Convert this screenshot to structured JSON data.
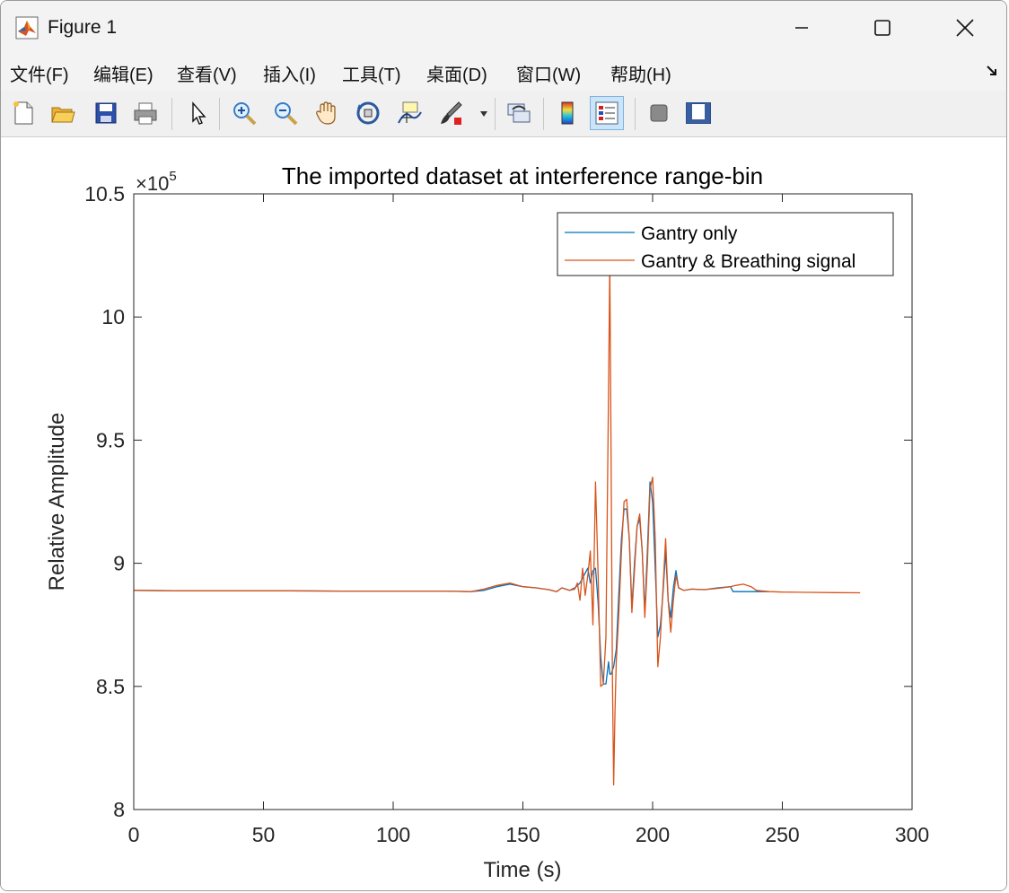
{
  "window": {
    "title": "Figure 1",
    "controls": {
      "minimize": "—",
      "maximize": "☐",
      "close": "✕"
    }
  },
  "menu": {
    "items": [
      "文件(F)",
      "编辑(E)",
      "查看(V)",
      "插入(I)",
      "工具(T)",
      "桌面(D)",
      "窗口(W)",
      "帮助(H)"
    ],
    "overflow_icon": "dock-arrow-icon"
  },
  "toolbar": {
    "buttons": [
      "new-figure-icon",
      "open-file-icon",
      "save-icon",
      "print-icon",
      "edit-plot-icon",
      "zoom-in-icon",
      "zoom-out-icon",
      "pan-icon",
      "rotate-3d-icon",
      "data-cursor-icon",
      "brush-icon",
      "link-plot-icon",
      "colorbar-icon",
      "legend-icon",
      "hide-plot-tools-icon",
      "show-plot-tools-icon"
    ],
    "active": "legend-icon"
  },
  "chart_data": {
    "type": "line",
    "title": "The imported dataset at interference range-bin",
    "xlabel": "Time (s)",
    "ylabel": "Relative Amplitude",
    "y_exponent": "×10",
    "y_exponent_power": "5",
    "xlim": [
      0,
      300
    ],
    "ylim": [
      8.0,
      10.5
    ],
    "x_ticks": [
      0,
      50,
      100,
      150,
      200,
      250,
      300
    ],
    "y_ticks": [
      8,
      8.5,
      9,
      9.5,
      10,
      10.5
    ],
    "x_tick_labels": [
      "0",
      "50",
      "100",
      "150",
      "200",
      "250",
      "300"
    ],
    "y_tick_labels": [
      "8",
      "8.5",
      "9",
      "9.5",
      "10",
      "10.5"
    ],
    "grid": false,
    "legend_position": "top-right",
    "series": [
      {
        "name": "Gantry only",
        "color": "#0072BD",
        "x": [
          0,
          20,
          40,
          60,
          80,
          100,
          120,
          130,
          135,
          140,
          145,
          150,
          155,
          160,
          163,
          165,
          168,
          170,
          172,
          174,
          175,
          176,
          177,
          178,
          179,
          180,
          181,
          182,
          183,
          183.5,
          184,
          185,
          186,
          187,
          188,
          189,
          190,
          191,
          192,
          193,
          194,
          195,
          196,
          197,
          198,
          199,
          200,
          201,
          202,
          203,
          204,
          205,
          206,
          207,
          208,
          209,
          210,
          212,
          215,
          220,
          225,
          230,
          231,
          232,
          235,
          240,
          245
        ],
        "y": [
          8.89,
          8.888,
          8.888,
          8.888,
          8.887,
          8.887,
          8.887,
          8.885,
          8.89,
          8.905,
          8.915,
          8.905,
          8.9,
          8.893,
          8.885,
          8.9,
          8.89,
          8.9,
          8.92,
          8.96,
          8.98,
          8.92,
          8.97,
          8.98,
          8.84,
          8.62,
          8.51,
          8.51,
          8.6,
          8.55,
          8.55,
          8.58,
          8.65,
          8.88,
          9.1,
          9.22,
          9.22,
          9.1,
          8.82,
          9.0,
          9.15,
          9.18,
          9.05,
          8.8,
          9.05,
          9.33,
          9.25,
          8.98,
          8.7,
          8.75,
          8.88,
          9.05,
          8.85,
          8.78,
          8.9,
          8.97,
          8.9,
          8.89,
          8.895,
          8.893,
          8.9,
          8.905,
          8.885,
          8.885,
          8.885,
          8.885,
          8.885
        ]
      },
      {
        "name": "Gantry & Breathing signal",
        "color": "#D95319",
        "x": [
          0,
          20,
          40,
          60,
          80,
          100,
          120,
          130,
          135,
          140,
          145,
          150,
          155,
          160,
          163,
          165,
          168,
          170,
          171,
          172,
          173,
          174,
          175,
          176,
          177,
          178,
          179,
          180,
          181,
          182,
          183,
          183.5,
          184,
          184.5,
          185,
          185.5,
          186,
          187,
          188,
          189,
          190,
          191,
          192,
          193,
          194,
          195,
          196,
          197,
          198,
          199,
          200,
          201,
          202,
          203,
          204,
          205,
          206,
          207,
          208,
          209,
          210,
          212,
          215,
          220,
          225,
          230,
          232,
          235,
          238,
          240,
          245,
          250,
          260,
          270,
          280
        ],
        "y": [
          8.89,
          8.888,
          8.888,
          8.888,
          8.887,
          8.887,
          8.887,
          8.885,
          8.895,
          8.91,
          8.92,
          8.905,
          8.9,
          8.893,
          8.885,
          8.9,
          8.89,
          8.895,
          8.92,
          8.85,
          8.98,
          8.87,
          8.95,
          9.05,
          8.75,
          9.33,
          8.95,
          8.5,
          8.51,
          8.7,
          9.7,
          10.22,
          9.4,
          8.55,
          8.1,
          8.4,
          8.6,
          8.8,
          9.05,
          9.25,
          9.26,
          9.1,
          8.8,
          8.97,
          9.15,
          9.2,
          9.05,
          8.78,
          9.0,
          9.3,
          9.35,
          9.1,
          8.58,
          8.7,
          8.9,
          9.1,
          8.85,
          8.72,
          8.85,
          8.95,
          8.9,
          8.89,
          8.895,
          8.893,
          8.898,
          8.905,
          8.91,
          8.915,
          8.905,
          8.89,
          8.885,
          8.883,
          8.882,
          8.881,
          8.88
        ]
      }
    ]
  }
}
